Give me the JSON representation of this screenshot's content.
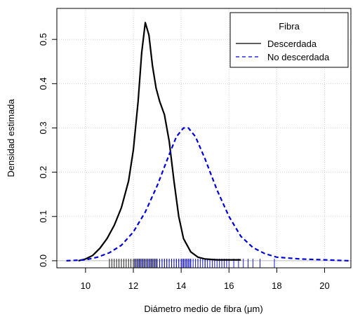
{
  "chart_data": {
    "type": "line",
    "title": "",
    "xlabel": "Diámetro medio de fibra (μm)",
    "ylabel": "Densidad estimada",
    "xlim": [
      8.8,
      21.1
    ],
    "ylim": [
      -0.016,
      0.57
    ],
    "x_ticks": [
      10,
      12,
      14,
      16,
      18,
      20
    ],
    "y_ticks": [
      0.0,
      0.1,
      0.2,
      0.3,
      0.4,
      0.5
    ],
    "x_tick_labels": [
      "10",
      "12",
      "14",
      "16",
      "18",
      "20"
    ],
    "y_tick_labels": [
      "0.0",
      "0.1",
      "0.2",
      "0.3",
      "0.4",
      "0.5"
    ],
    "grid": true,
    "legend": {
      "title": "Fibra",
      "position": "top-right",
      "entries": [
        "Descerdada",
        "No descerdada"
      ]
    },
    "series": [
      {
        "name": "Descerdada",
        "color": "#000000",
        "dash": "solid",
        "points": [
          [
            9.7,
            0.0
          ],
          [
            10.0,
            0.004
          ],
          [
            10.3,
            0.012
          ],
          [
            10.6,
            0.028
          ],
          [
            10.9,
            0.05
          ],
          [
            11.2,
            0.08
          ],
          [
            11.5,
            0.12
          ],
          [
            11.8,
            0.18
          ],
          [
            12.0,
            0.25
          ],
          [
            12.2,
            0.36
          ],
          [
            12.35,
            0.47
          ],
          [
            12.5,
            0.538
          ],
          [
            12.65,
            0.51
          ],
          [
            12.8,
            0.44
          ],
          [
            12.95,
            0.39
          ],
          [
            13.1,
            0.36
          ],
          [
            13.3,
            0.33
          ],
          [
            13.5,
            0.27
          ],
          [
            13.7,
            0.18
          ],
          [
            13.9,
            0.1
          ],
          [
            14.1,
            0.05
          ],
          [
            14.4,
            0.02
          ],
          [
            14.7,
            0.008
          ],
          [
            15.0,
            0.004
          ],
          [
            15.5,
            0.002
          ],
          [
            16.5,
            0.002
          ]
        ]
      },
      {
        "name": "No descerdada",
        "color": "#0000dd",
        "dash": "dashed",
        "points": [
          [
            9.2,
            0.0
          ],
          [
            10.0,
            0.002
          ],
          [
            10.5,
            0.008
          ],
          [
            11.0,
            0.018
          ],
          [
            11.5,
            0.035
          ],
          [
            12.0,
            0.065
          ],
          [
            12.5,
            0.11
          ],
          [
            13.0,
            0.17
          ],
          [
            13.5,
            0.24
          ],
          [
            13.8,
            0.28
          ],
          [
            14.1,
            0.3
          ],
          [
            14.3,
            0.3
          ],
          [
            14.6,
            0.28
          ],
          [
            15.0,
            0.23
          ],
          [
            15.5,
            0.16
          ],
          [
            16.0,
            0.1
          ],
          [
            16.5,
            0.055
          ],
          [
            17.0,
            0.03
          ],
          [
            17.5,
            0.016
          ],
          [
            18.0,
            0.008
          ],
          [
            19.0,
            0.004
          ],
          [
            20.0,
            0.002
          ],
          [
            21.0,
            0.0
          ]
        ]
      }
    ],
    "rug": {
      "Descerdada": [
        11.0,
        11.1,
        11.2,
        11.3,
        11.4,
        11.5,
        11.6,
        11.7,
        11.8,
        11.9,
        12.0,
        12.05,
        12.1,
        12.15,
        12.2,
        12.25,
        12.3,
        12.35,
        12.4,
        12.45,
        12.5,
        12.55,
        12.6,
        12.65,
        12.7,
        12.75,
        12.8,
        12.85,
        12.9,
        12.95,
        13.0,
        13.1,
        13.2,
        13.3,
        13.4,
        13.5,
        13.6,
        13.7,
        13.8,
        13.9,
        14.0,
        14.1,
        14.2,
        14.4,
        14.7,
        15.0
      ],
      "No descerdada": [
        12.1,
        12.2,
        12.3,
        12.4,
        12.5,
        12.6,
        12.7,
        12.8,
        12.9,
        13.0,
        13.1,
        13.2,
        13.3,
        13.4,
        13.5,
        13.6,
        13.7,
        13.8,
        13.9,
        14.0,
        14.05,
        14.1,
        14.15,
        14.2,
        14.25,
        14.3,
        14.35,
        14.4,
        14.5,
        14.6,
        14.7,
        14.8,
        14.9,
        15.0,
        15.1,
        15.2,
        15.3,
        15.4,
        15.5,
        15.6,
        15.7,
        15.8,
        15.9,
        16.0,
        16.2,
        16.4,
        16.6,
        16.8,
        17.0,
        17.3,
        17.9
      ]
    }
  }
}
